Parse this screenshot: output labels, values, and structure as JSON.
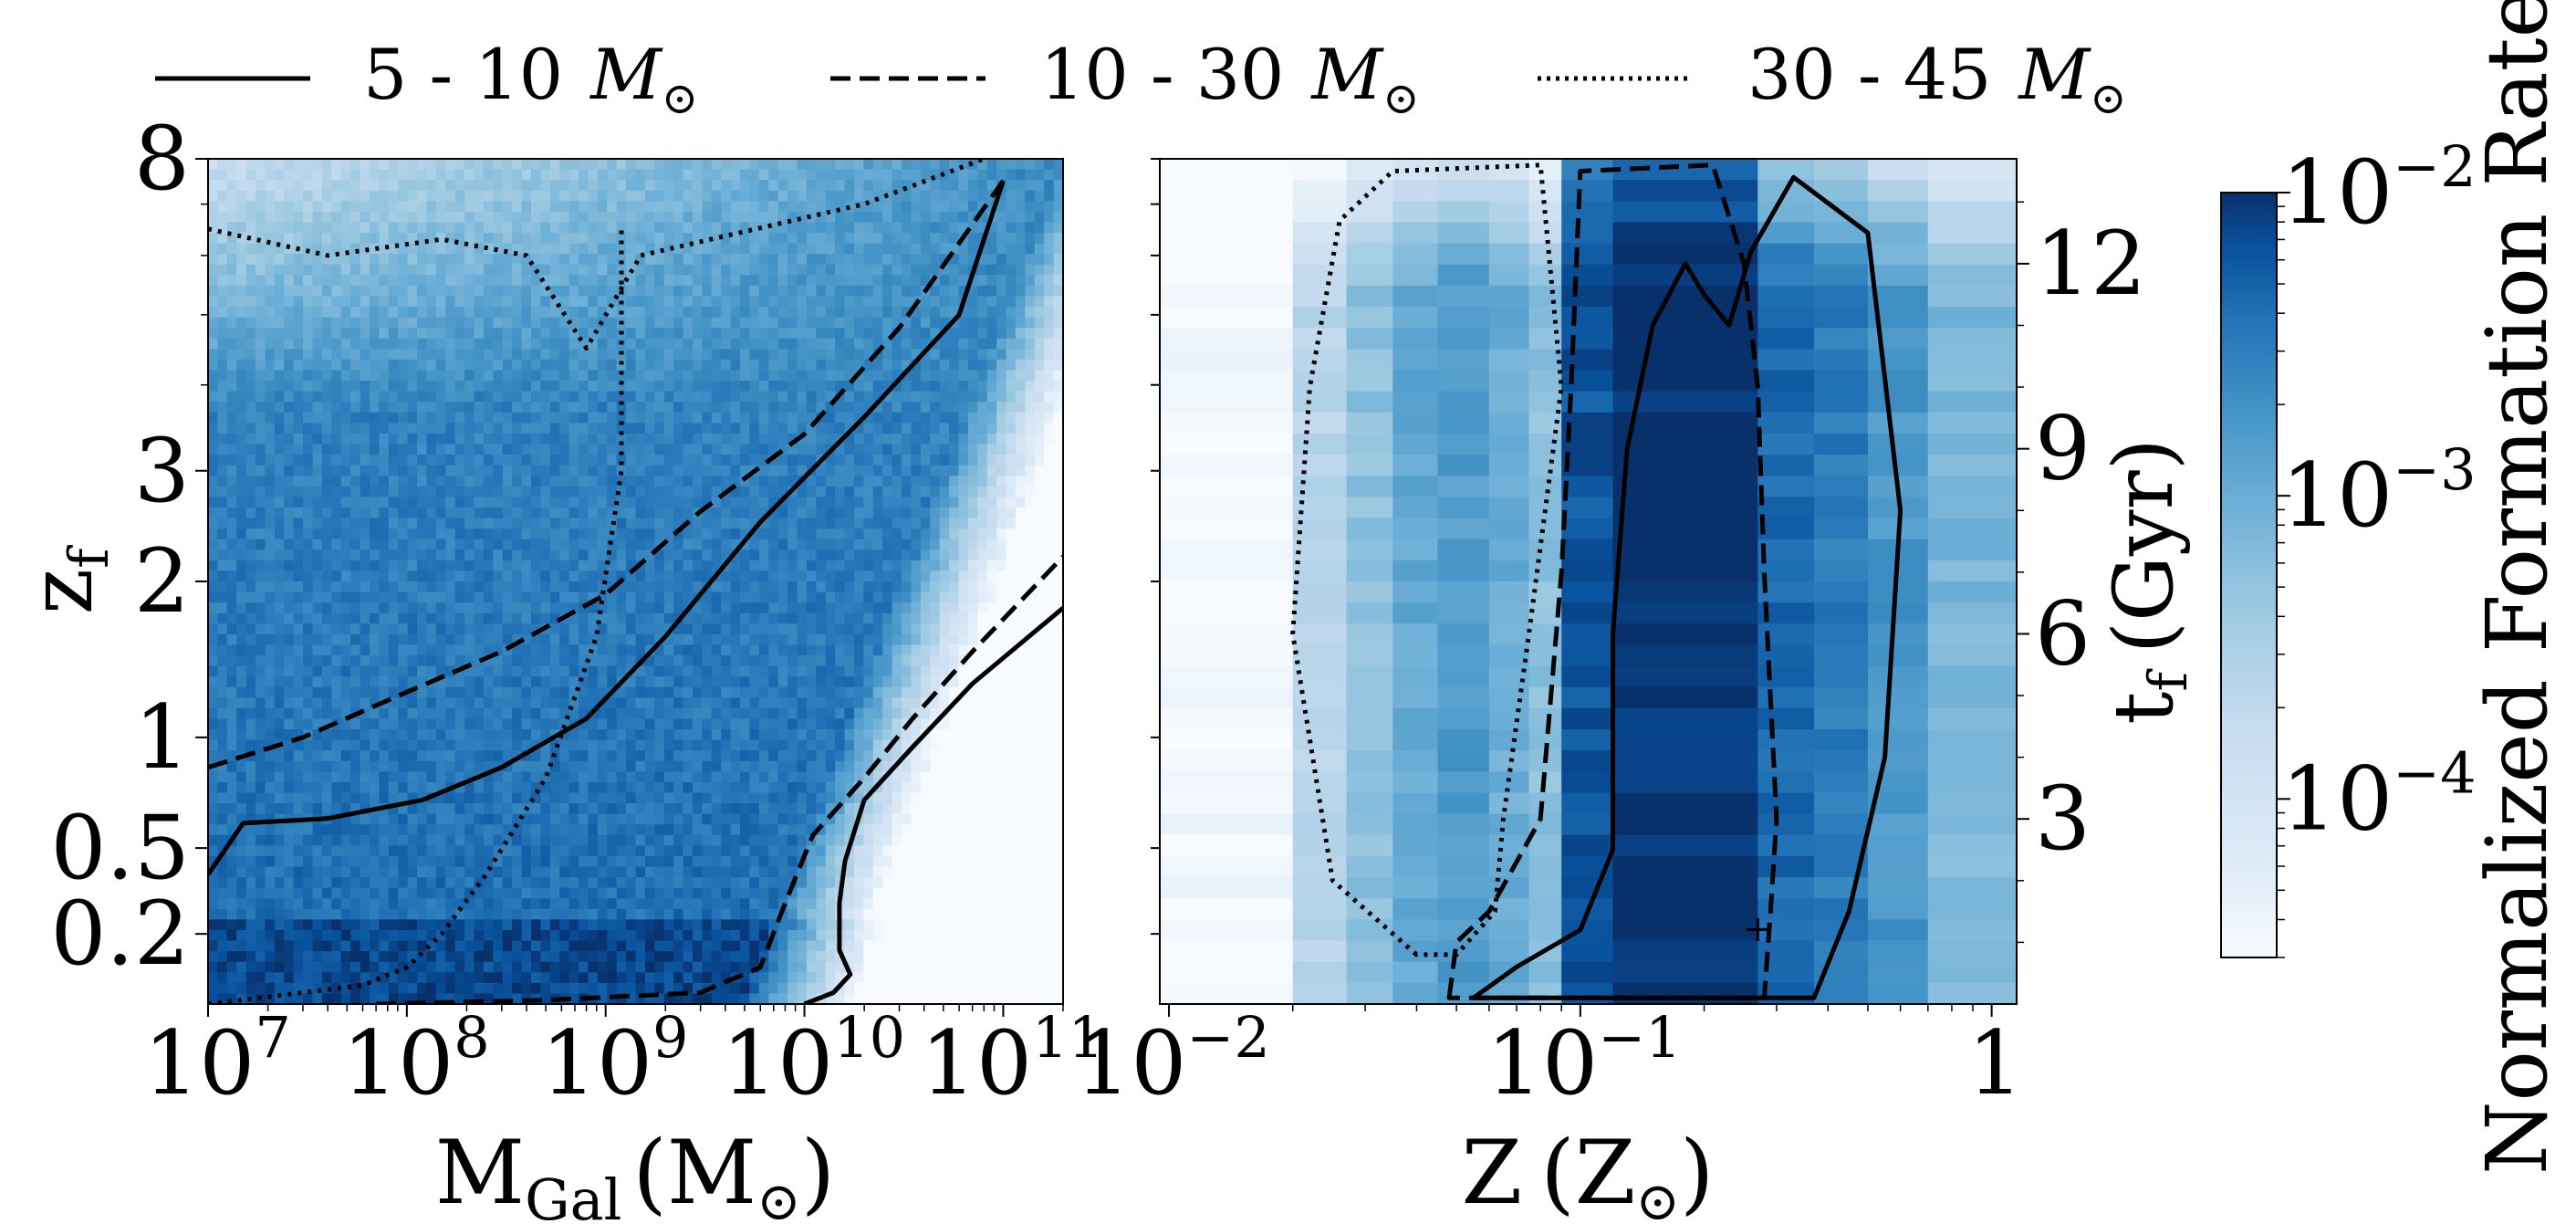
{
  "chart_data": [
    {
      "type": "heatmap",
      "panel": "left",
      "xlabel": "M_Gal (M_sun)",
      "xscale": "log",
      "xlim": [
        10000000.0,
        200000000000.0
      ],
      "x_ticks": [
        {
          "v": 10000000.0,
          "label": "10^7"
        },
        {
          "v": 100000000.0,
          "label": "10^8"
        },
        {
          "v": 1000000000.0,
          "label": "10^9"
        },
        {
          "v": 10000000000.0,
          "label": "10^10"
        },
        {
          "v": 100000000000.0,
          "label": "10^11"
        }
      ],
      "ylabel": "z_f",
      "yscale": "log(1+z)",
      "ylim": [
        0.0,
        8.0
      ],
      "y_ticks": [
        {
          "v": 0.2,
          "label": "0.2"
        },
        {
          "v": 0.5,
          "label": "0.5"
        },
        {
          "v": 1,
          "label": "1"
        },
        {
          "v": 2,
          "label": "2"
        },
        {
          "v": 3,
          "label": "3"
        },
        {
          "v": 8,
          "label": "8"
        }
      ],
      "contours": [
        {
          "series": "5 - 10 M_sun",
          "style": "solid",
          "points": [
            [
              10000000000.0,
              0.0
            ],
            [
              14000000000.0,
              0.03
            ],
            [
              17000000000.0,
              0.08
            ],
            [
              15000000000.0,
              0.15
            ],
            [
              15000000000.0,
              0.3
            ],
            [
              16000000000.0,
              0.45
            ],
            [
              20000000000.0,
              0.7
            ],
            [
              35000000000.0,
              0.95
            ],
            [
              70000000000.0,
              1.3
            ],
            [
              200000000000.0,
              1.8
            ]
          ]
        },
        {
          "series": "5 - 10 M_sun",
          "style": "solid",
          "points": [
            [
              10000000.0,
              0.4
            ],
            [
              15000000.0,
              0.6
            ],
            [
              40000000.0,
              0.62
            ],
            [
              120000000.0,
              0.7
            ],
            [
              300000000.0,
              0.85
            ],
            [
              800000000.0,
              1.1
            ],
            [
              2000000000.0,
              1.6
            ],
            [
              6000000000.0,
              2.5
            ],
            [
              20000000000.0,
              3.6
            ],
            [
              60000000000.0,
              5.0
            ],
            [
              100000000000.0,
              7.5
            ]
          ]
        },
        {
          "series": "10 - 30 M_sun",
          "style": "dashed",
          "points": [
            [
              70000000.0,
              0.0
            ],
            [
              500000000.0,
              0.01
            ],
            [
              3000000000.0,
              0.03
            ],
            [
              6000000000.0,
              0.1
            ],
            [
              8000000000.0,
              0.3
            ],
            [
              11000000000.0,
              0.55
            ],
            [
              20000000000.0,
              0.8
            ],
            [
              35000000000.0,
              1.1
            ],
            [
              70000000000.0,
              1.5
            ],
            [
              200000000000.0,
              2.2
            ]
          ]
        },
        {
          "series": "10 - 30 M_sun",
          "style": "dashed",
          "points": [
            [
              10000000.0,
              0.85
            ],
            [
              30000000.0,
              1.0
            ],
            [
              100000000.0,
              1.25
            ],
            [
              300000000.0,
              1.5
            ],
            [
              1000000000.0,
              1.9
            ],
            [
              3000000000.0,
              2.6
            ],
            [
              10000000000.0,
              3.4
            ],
            [
              30000000000.0,
              4.8
            ],
            [
              100000000000.0,
              7.5
            ]
          ]
        },
        {
          "series": "30 - 45 M_sun",
          "style": "dotted",
          "points": [
            [
              10000000.0,
              0.0
            ],
            [
              30000000.0,
              0.03
            ],
            [
              60000000.0,
              0.05
            ],
            [
              100000000.0,
              0.1
            ],
            [
              150000000.0,
              0.2
            ],
            [
              250000000.0,
              0.4
            ],
            [
              500000000.0,
              0.8
            ],
            [
              900000000.0,
              1.6
            ],
            [
              1200000000.0,
              3.0
            ],
            [
              1200000000.0,
              6.5
            ]
          ]
        },
        {
          "series": "30 - 45 M_sun",
          "style": "dotted",
          "points": [
            [
              10000000.0,
              6.5
            ],
            [
              40000000.0,
              6.0
            ],
            [
              150000000.0,
              6.3
            ],
            [
              400000000.0,
              6.0
            ],
            [
              800000000.0,
              4.5
            ],
            [
              1500000000.0,
              6.0
            ],
            [
              20000000000.0,
              7.0
            ],
            [
              80000000000.0,
              8.0
            ]
          ]
        }
      ]
    },
    {
      "type": "heatmap",
      "panel": "right",
      "xlabel": "Z (Z_sun)",
      "xscale": "log",
      "xlim": [
        0.0095,
        1.15
      ],
      "x_ticks": [
        {
          "v": 0.01,
          "label": "10^-2"
        },
        {
          "v": 0.1,
          "label": "10^-1"
        },
        {
          "v": 1,
          "label": "1"
        }
      ],
      "ylabel": "t_f (Gyr)",
      "ylim": [
        0.0,
        13.7
      ],
      "y_ticks": [
        {
          "v": 3,
          "label": "3"
        },
        {
          "v": 6,
          "label": "6"
        },
        {
          "v": 9,
          "label": "9"
        },
        {
          "v": 12,
          "label": "12"
        }
      ],
      "contours": [
        {
          "series": "5 - 10 M_sun",
          "style": "solid",
          "points": [
            [
              0.055,
              0.1
            ],
            [
              0.07,
              0.6
            ],
            [
              0.1,
              1.2
            ],
            [
              0.12,
              2.5
            ],
            [
              0.12,
              6.0
            ],
            [
              0.13,
              9.0
            ],
            [
              0.15,
              11.0
            ],
            [
              0.18,
              12.0
            ],
            [
              0.2,
              11.5
            ],
            [
              0.23,
              11.0
            ],
            [
              0.26,
              12.2
            ],
            [
              0.33,
              13.4
            ],
            [
              0.5,
              12.5
            ],
            [
              0.6,
              8.0
            ],
            [
              0.55,
              4.0
            ],
            [
              0.45,
              1.5
            ],
            [
              0.37,
              0.1
            ]
          ]
        },
        {
          "series": "10 - 30 M_sun",
          "style": "dashed",
          "points": [
            [
              0.048,
              0.1
            ],
            [
              0.05,
              1.0
            ],
            [
              0.06,
              1.5
            ],
            [
              0.08,
              3.0
            ],
            [
              0.09,
              7.0
            ],
            [
              0.095,
              10.0
            ],
            [
              0.1,
              13.5
            ],
            [
              0.21,
              13.6
            ],
            [
              0.25,
              12.0
            ],
            [
              0.27,
              10.0
            ],
            [
              0.28,
              7.0
            ],
            [
              0.3,
              3.0
            ],
            [
              0.29,
              1.5
            ],
            [
              0.28,
              0.1
            ]
          ]
        },
        {
          "series": "30 - 45 M_sun",
          "style": "dotted",
          "points": [
            [
              0.04,
              0.8
            ],
            [
              0.025,
              2.0
            ],
            [
              0.02,
              6.0
            ],
            [
              0.022,
              10.0
            ],
            [
              0.026,
              12.7
            ],
            [
              0.035,
              13.5
            ],
            [
              0.08,
              13.6
            ],
            [
              0.09,
              10.0
            ],
            [
              0.075,
              6.0
            ],
            [
              0.065,
              3.0
            ],
            [
              0.062,
              1.5
            ],
            [
              0.05,
              0.8
            ]
          ]
        }
      ],
      "markers": [
        {
          "x": 0.27,
          "y": 1.2,
          "symbol": "+"
        }
      ]
    }
  ],
  "legend": [
    {
      "label": "5 - 10",
      "unit": "M",
      "style": "solid"
    },
    {
      "label": "10 - 30",
      "unit": "M",
      "style": "dashed"
    },
    {
      "label": "30 - 45",
      "unit": "M",
      "style": "dotted"
    }
  ],
  "axes_labels": {
    "left_y_main": "z",
    "left_y_sub": "f",
    "left_x_main": "M",
    "left_x_sub": "Gal",
    "left_x_unit": "(M",
    "right_x_main": "Z",
    "right_x_unit": "(Z",
    "right_y_main": "t",
    "right_y_sub": "f",
    "right_y_unit": "(Gyr)",
    "close_paren": ")"
  },
  "colorbar": {
    "label": "Normalized Formation Rate",
    "scale": "log",
    "range": [
      3e-05,
      0.01
    ],
    "ticks": [
      {
        "v": 0.01,
        "base": "10",
        "exp": "−2"
      },
      {
        "v": 0.001,
        "base": "10",
        "exp": "−3"
      },
      {
        "v": 0.0001,
        "base": "10",
        "exp": "−4"
      }
    ],
    "colormap": "Blues",
    "color_min": "#f7fbff",
    "color_max": "#08306b"
  }
}
